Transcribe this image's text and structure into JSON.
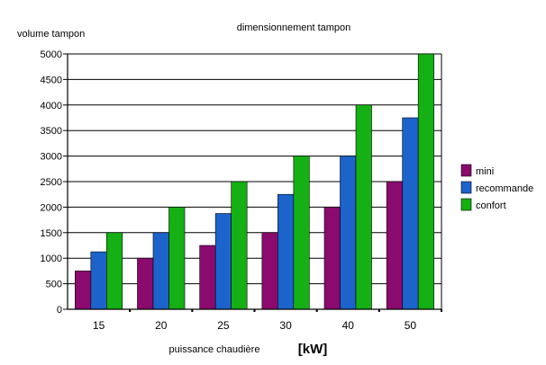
{
  "chart_data": {
    "type": "bar",
    "title": "dimensionnement tampon",
    "ylabel": "volume tampon",
    "xlabel": "puissance chaudière",
    "xunit": "[kW]",
    "categories": [
      "15",
      "20",
      "25",
      "30",
      "40",
      "50"
    ],
    "series": [
      {
        "name": "mini",
        "color": "#8b0a6e",
        "values": [
          750,
          1000,
          1250,
          1500,
          2000,
          2500
        ]
      },
      {
        "name": "recommande",
        "color": "#1c63cc",
        "values": [
          1125,
          1500,
          1875,
          2250,
          3000,
          3750
        ]
      },
      {
        "name": "confort",
        "color": "#14b014",
        "values": [
          1500,
          2000,
          2500,
          3000,
          4000,
          5000
        ]
      }
    ],
    "ylim": [
      0,
      5000
    ],
    "yticks": [
      "0",
      "500",
      "1000",
      "1500",
      "2000",
      "2500",
      "3000",
      "3500",
      "4000",
      "4500",
      "5000"
    ],
    "grid": true,
    "legend_position": "right"
  }
}
